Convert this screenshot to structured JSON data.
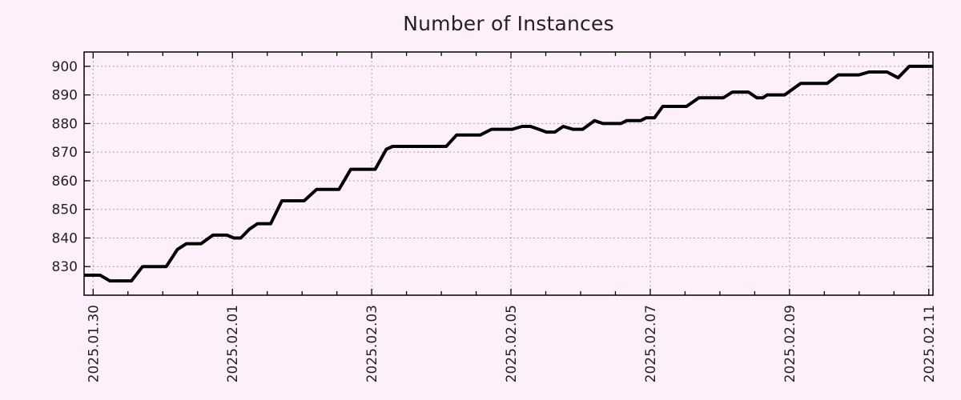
{
  "page": {
    "background_color": "#fdf0fa"
  },
  "chart_data": {
    "type": "line",
    "title": "Number of Instances",
    "xlabel": "",
    "ylabel": "",
    "legend": "none",
    "grid": "dotted",
    "x_unit": "days since 2025-01-30",
    "x_range": [
      -0.13,
      12.06
    ],
    "y_range": [
      820,
      905
    ],
    "y_ticks": [
      830,
      840,
      850,
      860,
      870,
      880,
      890,
      900
    ],
    "x_major_ticks": [
      {
        "pos": 0,
        "label": "2025.01.30"
      },
      {
        "pos": 2,
        "label": "2025.02.01"
      },
      {
        "pos": 4,
        "label": "2025.02.03"
      },
      {
        "pos": 6,
        "label": "2025.02.05"
      },
      {
        "pos": 8,
        "label": "2025.02.07"
      },
      {
        "pos": 10,
        "label": "2025.02.09"
      },
      {
        "pos": 12,
        "label": "2025.02.11"
      }
    ],
    "x_minor_step": 0.5,
    "series": [
      {
        "name": "instances",
        "color": "#000000",
        "line_width": 4,
        "points": [
          [
            -0.13,
            827
          ],
          [
            0.1,
            827
          ],
          [
            0.24,
            825
          ],
          [
            0.55,
            825
          ],
          [
            0.71,
            830
          ],
          [
            1.05,
            830
          ],
          [
            1.21,
            836
          ],
          [
            1.34,
            838
          ],
          [
            1.55,
            838
          ],
          [
            1.72,
            841
          ],
          [
            1.92,
            841
          ],
          [
            2.02,
            840
          ],
          [
            2.12,
            840
          ],
          [
            2.24,
            843
          ],
          [
            2.36,
            845
          ],
          [
            2.55,
            845
          ],
          [
            2.71,
            853
          ],
          [
            3.03,
            853
          ],
          [
            3.21,
            857
          ],
          [
            3.53,
            857
          ],
          [
            3.7,
            864
          ],
          [
            4.05,
            864
          ],
          [
            4.21,
            871
          ],
          [
            4.3,
            872
          ],
          [
            5.07,
            872
          ],
          [
            5.22,
            876
          ],
          [
            5.56,
            876
          ],
          [
            5.72,
            878
          ],
          [
            6.02,
            878
          ],
          [
            6.16,
            879
          ],
          [
            6.28,
            879
          ],
          [
            6.4,
            878
          ],
          [
            6.51,
            877
          ],
          [
            6.63,
            877
          ],
          [
            6.75,
            879
          ],
          [
            6.89,
            878
          ],
          [
            7.03,
            878
          ],
          [
            7.2,
            881
          ],
          [
            7.32,
            880
          ],
          [
            7.58,
            880
          ],
          [
            7.66,
            881
          ],
          [
            7.86,
            881
          ],
          [
            7.94,
            882
          ],
          [
            8.06,
            882
          ],
          [
            8.18,
            886
          ],
          [
            8.52,
            886
          ],
          [
            8.7,
            889
          ],
          [
            9.05,
            889
          ],
          [
            9.18,
            891
          ],
          [
            9.41,
            891
          ],
          [
            9.53,
            889
          ],
          [
            9.62,
            889
          ],
          [
            9.68,
            890
          ],
          [
            9.93,
            890
          ],
          [
            10.16,
            894
          ],
          [
            10.54,
            894
          ],
          [
            10.7,
            897
          ],
          [
            11.0,
            897
          ],
          [
            11.14,
            898
          ],
          [
            11.4,
            898
          ],
          [
            11.56,
            896
          ],
          [
            11.72,
            900
          ],
          [
            12.06,
            900
          ]
        ]
      }
    ]
  },
  "style": {
    "grid_color": "#a9a2a7",
    "axis_color": "#000000",
    "text_color": "#241e26",
    "tick_label_size": 17,
    "title_size": 25
  }
}
